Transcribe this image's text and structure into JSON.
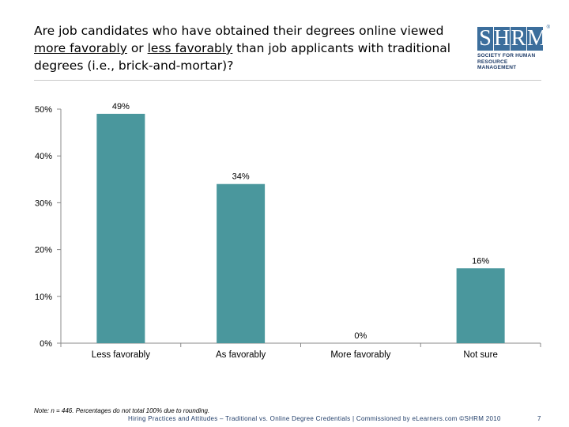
{
  "title": {
    "part1": "Are job candidates who have obtained their degrees online viewed",
    "underline1": "more favorably",
    "mid": " or ",
    "underline2": "less favorably",
    "part2": " than job applicants with traditional degrees (i.e., brick-and-mortar)?"
  },
  "logo": {
    "letters": [
      "S",
      "H",
      "R",
      "M"
    ],
    "registered": "®",
    "line1": "SOCIETY FOR HUMAN",
    "line2": "RESOURCE MANAGEMENT"
  },
  "chart_data": {
    "type": "bar",
    "categories": [
      "Less favorably",
      "As favorably",
      "More favorably",
      "Not sure"
    ],
    "values": [
      49,
      34,
      0,
      16
    ],
    "data_labels": [
      "49%",
      "34%",
      "0%",
      "16%"
    ],
    "ylim": [
      0,
      50
    ],
    "yticks": [
      0,
      10,
      20,
      30,
      40,
      50
    ],
    "ytick_labels": [
      "0%",
      "10%",
      "20%",
      "30%",
      "40%",
      "50%"
    ],
    "bar_color": "#4a979d",
    "grid": false
  },
  "note": "Note: n = 446. Percentages do not total 100% due to rounding.",
  "footer": "Hiring Practices and Attitudes – Traditional vs. Online Degree Credentials | Commissioned by eLearners.com ©SHRM 2010",
  "page_number": "7"
}
